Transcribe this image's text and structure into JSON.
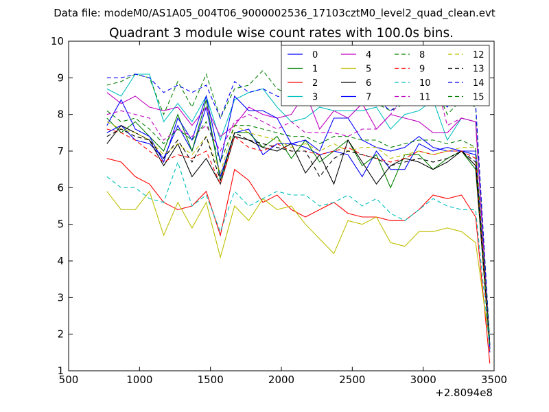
{
  "chart_data": {
    "type": "line",
    "suptitle": "Data file: modeM0/AS1A05_004T06_9000002536_17103cztM0_level2_quad_clean.evt",
    "title": "Quadrant 3 module wise count rates with 100.0s bins.",
    "xlabel": "",
    "ylabel": "",
    "x_offset_label": "+2.8094e8",
    "xlim": [
      500,
      3500
    ],
    "ylim": [
      1,
      10
    ],
    "xticks": [
      500,
      1000,
      1500,
      2000,
      2500,
      3000,
      3500
    ],
    "yticks": [
      1,
      2,
      3,
      4,
      5,
      6,
      7,
      8,
      9,
      10
    ],
    "legend_position": "top-right",
    "legend_columns": 4,
    "x": [
      770,
      870,
      970,
      1070,
      1170,
      1270,
      1370,
      1470,
      1570,
      1670,
      1770,
      1870,
      1970,
      2070,
      2170,
      2270,
      2370,
      2470,
      2570,
      2670,
      2770,
      2870,
      2970,
      3070,
      3170,
      3270,
      3370,
      3470
    ],
    "series": [
      {
        "name": "0",
        "color": "#0000ff",
        "dashed": false,
        "values": [
          7.5,
          7.7,
          7.3,
          7.2,
          6.8,
          7.7,
          7.0,
          8.2,
          6.3,
          7.5,
          7.6,
          6.9,
          7.2,
          7.2,
          7.1,
          6.9,
          7.0,
          6.9,
          6.3,
          7.0,
          6.5,
          6.5,
          7.2,
          7.0,
          7.1,
          7.0,
          6.9,
          1.5
        ]
      },
      {
        "name": "1",
        "color": "#008000",
        "dashed": false,
        "values": [
          7.9,
          7.5,
          7.8,
          7.4,
          7.0,
          8.0,
          7.0,
          8.4,
          6.2,
          7.5,
          7.5,
          7.1,
          7.4,
          6.8,
          7.3,
          6.7,
          7.0,
          7.3,
          6.6,
          6.9,
          6.0,
          6.9,
          6.9,
          6.5,
          6.8,
          7.0,
          6.5,
          1.6
        ]
      },
      {
        "name": "2",
        "color": "#ff0000",
        "dashed": false,
        "values": [
          6.8,
          6.7,
          6.3,
          6.1,
          5.6,
          5.4,
          5.5,
          5.9,
          4.7,
          6.5,
          6.2,
          5.6,
          5.8,
          5.4,
          5.2,
          5.4,
          5.6,
          5.3,
          5.2,
          5.2,
          5.1,
          5.1,
          5.4,
          5.8,
          5.7,
          5.8,
          5.2,
          1.2
        ]
      },
      {
        "name": "3",
        "color": "#00bfbf",
        "dashed": false,
        "values": [
          8.7,
          8.5,
          9.1,
          9.1,
          7.8,
          8.3,
          7.8,
          8.5,
          7.3,
          8.4,
          8.6,
          8.7,
          8.2,
          7.8,
          7.9,
          8.2,
          8.1,
          8.1,
          8.1,
          8.2,
          7.6,
          8.0,
          8.1,
          8.4,
          7.3,
          7.9,
          7.8,
          1.7
        ]
      },
      {
        "name": "4",
        "color": "#bf00bf",
        "dashed": false,
        "values": [
          8.6,
          8.3,
          8.5,
          8.2,
          8.1,
          8.2,
          7.7,
          8.2,
          7.4,
          7.7,
          8.2,
          8.0,
          7.9,
          8.0,
          8.6,
          7.6,
          8.1,
          7.9,
          8.3,
          7.6,
          8.0,
          7.9,
          7.8,
          7.5,
          7.5,
          7.9,
          7.8,
          1.6
        ]
      },
      {
        "name": "5",
        "color": "#bfbf00",
        "dashed": false,
        "values": [
          5.9,
          5.4,
          5.4,
          5.9,
          4.7,
          5.6,
          4.9,
          5.6,
          4.1,
          5.5,
          5.1,
          5.7,
          5.4,
          5.5,
          5.0,
          4.6,
          4.2,
          5.1,
          5.0,
          5.2,
          4.5,
          4.4,
          4.8,
          4.8,
          4.9,
          4.8,
          4.5,
          1.7
        ]
      },
      {
        "name": "6",
        "color": "#000000",
        "dashed": false,
        "values": [
          7.2,
          7.7,
          7.5,
          7.3,
          6.6,
          7.2,
          6.3,
          6.8,
          6.1,
          7.4,
          7.3,
          7.1,
          7.0,
          7.2,
          6.4,
          6.9,
          6.1,
          7.3,
          6.7,
          6.1,
          6.6,
          6.8,
          6.7,
          6.5,
          6.7,
          7.0,
          6.6,
          1.6
        ]
      },
      {
        "name": "7",
        "color": "#0000ff",
        "dashed": false,
        "values": [
          7.7,
          8.4,
          7.6,
          7.4,
          6.7,
          7.9,
          7.3,
          8.5,
          6.7,
          8.5,
          8.1,
          8.1,
          7.9,
          7.2,
          7.3,
          7.0,
          7.9,
          7.9,
          7.3,
          7.1,
          7.0,
          7.1,
          7.4,
          7.1,
          7.0,
          7.0,
          7.0,
          1.6
        ]
      },
      {
        "name": "8",
        "color": "#008000",
        "dashed": true,
        "values": [
          8.8,
          8.9,
          9.1,
          9.0,
          8.0,
          8.9,
          8.2,
          9.1,
          7.9,
          8.7,
          8.8,
          9.2,
          8.7,
          8.5,
          8.4,
          8.3,
          8.6,
          8.6,
          8.7,
          8.3,
          8.1,
          8.3,
          8.6,
          8.9,
          8.0,
          8.4,
          8.2,
          1.8
        ]
      },
      {
        "name": "9",
        "color": "#ff0000",
        "dashed": true,
        "values": [
          7.6,
          7.5,
          7.3,
          7.0,
          6.7,
          6.9,
          6.8,
          7.0,
          6.1,
          7.4,
          7.1,
          7.0,
          7.2,
          7.0,
          7.0,
          6.9,
          7.0,
          7.1,
          6.9,
          6.8,
          6.7,
          6.8,
          7.0,
          6.9,
          7.0,
          7.0,
          6.8,
          1.5
        ]
      },
      {
        "name": "10",
        "color": "#00bfbf",
        "dashed": true,
        "values": [
          6.3,
          6.0,
          6.0,
          5.7,
          5.6,
          6.7,
          5.5,
          5.8,
          4.8,
          5.9,
          5.5,
          5.7,
          5.9,
          5.8,
          5.8,
          5.5,
          5.6,
          5.8,
          5.5,
          5.7,
          5.3,
          5.1,
          5.4,
          5.7,
          5.5,
          5.4,
          5.4,
          1.6
        ]
      },
      {
        "name": "11",
        "color": "#bf00bf",
        "dashed": true,
        "values": [
          8.0,
          8.1,
          8.0,
          7.9,
          7.3,
          7.6,
          7.4,
          7.7,
          7.0,
          7.8,
          8.0,
          7.8,
          7.6,
          7.8,
          7.5,
          7.5,
          7.5,
          7.4,
          7.6,
          7.6,
          8.0,
          8.5,
          8.6,
          9.2,
          7.7,
          7.9,
          7.8,
          1.7
        ]
      },
      {
        "name": "12",
        "color": "#bfbf00",
        "dashed": true,
        "values": [
          7.8,
          7.6,
          7.5,
          7.3,
          6.9,
          7.2,
          6.9,
          7.4,
          6.4,
          7.7,
          7.5,
          7.4,
          7.3,
          7.1,
          7.2,
          7.0,
          7.2,
          7.0,
          7.1,
          7.1,
          6.8,
          6.9,
          7.0,
          6.9,
          7.0,
          7.1,
          7.1,
          1.7
        ]
      },
      {
        "name": "13",
        "color": "#000000",
        "dashed": true,
        "values": [
          7.4,
          7.6,
          7.4,
          7.3,
          6.8,
          7.3,
          6.7,
          7.4,
          6.2,
          7.5,
          7.3,
          7.2,
          7.1,
          7.0,
          7.0,
          6.3,
          6.8,
          7.0,
          6.9,
          6.8,
          6.6,
          6.7,
          6.8,
          6.7,
          6.8,
          7.0,
          6.7,
          1.7
        ]
      },
      {
        "name": "14",
        "color": "#0000ff",
        "dashed": true,
        "values": [
          9.0,
          9.0,
          9.1,
          9.0,
          8.6,
          8.8,
          8.6,
          8.8,
          7.9,
          8.9,
          8.6,
          8.7,
          8.5,
          8.4,
          8.5,
          8.3,
          8.4,
          8.4,
          8.3,
          8.4,
          8.1,
          8.4,
          8.5,
          8.7,
          8.2,
          8.5,
          8.3,
          1.7
        ]
      },
      {
        "name": "15",
        "color": "#008000",
        "dashed": true,
        "values": [
          8.1,
          7.8,
          7.9,
          7.6,
          7.2,
          7.6,
          7.3,
          7.8,
          6.7,
          7.7,
          7.7,
          7.6,
          7.5,
          7.4,
          7.4,
          7.2,
          7.4,
          7.4,
          7.3,
          7.3,
          7.1,
          7.2,
          7.3,
          7.3,
          7.2,
          7.3,
          7.1,
          1.7
        ]
      }
    ]
  }
}
